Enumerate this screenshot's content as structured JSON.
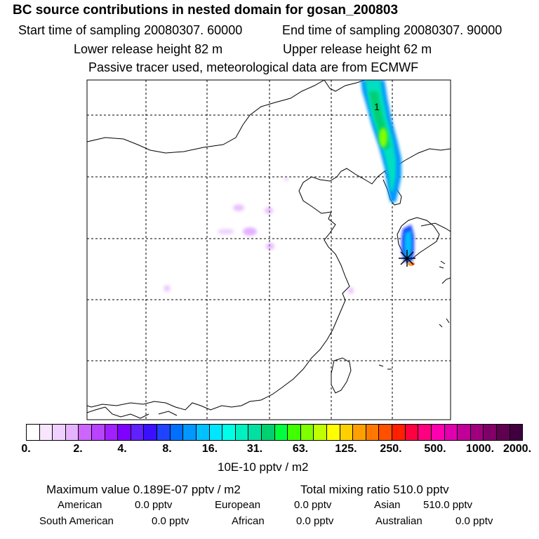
{
  "header": {
    "title": "BC  source contributions in nested domain for gosan_200803",
    "start_time": "Start time of sampling 20080307. 60000",
    "end_time": "End time of sampling 20080307. 90000",
    "lower_release": "Lower release height   82 m",
    "upper_release": "Upper release height   62 m",
    "tracer_note": "Passive tracer used, meteorological data are from ECMWF"
  },
  "map": {
    "contour_label": "1",
    "receptor_marker": "star"
  },
  "colorbar": {
    "colors": [
      "#ffffff",
      "#f8e6ff",
      "#f0d0ff",
      "#e6b4ff",
      "#cc66ff",
      "#b844ff",
      "#a020ff",
      "#8000ff",
      "#6020ff",
      "#3a10ff",
      "#1e44ff",
      "#0070ff",
      "#0098ff",
      "#00c0ff",
      "#00e6ff",
      "#00ffe6",
      "#00f0c0",
      "#00e0a0",
      "#00d070",
      "#00ff3c",
      "#40ff00",
      "#80ff00",
      "#c0ff00",
      "#ffff00",
      "#ffd000",
      "#ffa000",
      "#ff7800",
      "#ff5000",
      "#ff2000",
      "#ff0040",
      "#ff0080",
      "#ff00b0",
      "#e000b0",
      "#c00098",
      "#a00080",
      "#800068",
      "#600050",
      "#400040"
    ],
    "tick_labels": [
      "0.",
      "2.",
      "4.",
      "8.",
      "16.",
      "31.",
      "63.",
      "125.",
      "250.",
      "500.",
      "1000.",
      "2000."
    ],
    "unit": "10E-10 pptv / m2"
  },
  "summary": {
    "max_value": "Maximum value  0.189E-07 pptv / m2",
    "total_mixing": "Total mixing ratio      510.0 pptv",
    "american_label": "American",
    "american_value": "0.0 pptv",
    "european_label": "European",
    "european_value": "0.0 pptv",
    "asian_label": "Asian",
    "asian_value": "510.0 pptv",
    "south_american_label": "South American",
    "south_american_value": "0.0 pptv",
    "african_label": "African",
    "african_value": "0.0 pptv",
    "australian_label": "Australian",
    "australian_value": "0.0 pptv"
  }
}
